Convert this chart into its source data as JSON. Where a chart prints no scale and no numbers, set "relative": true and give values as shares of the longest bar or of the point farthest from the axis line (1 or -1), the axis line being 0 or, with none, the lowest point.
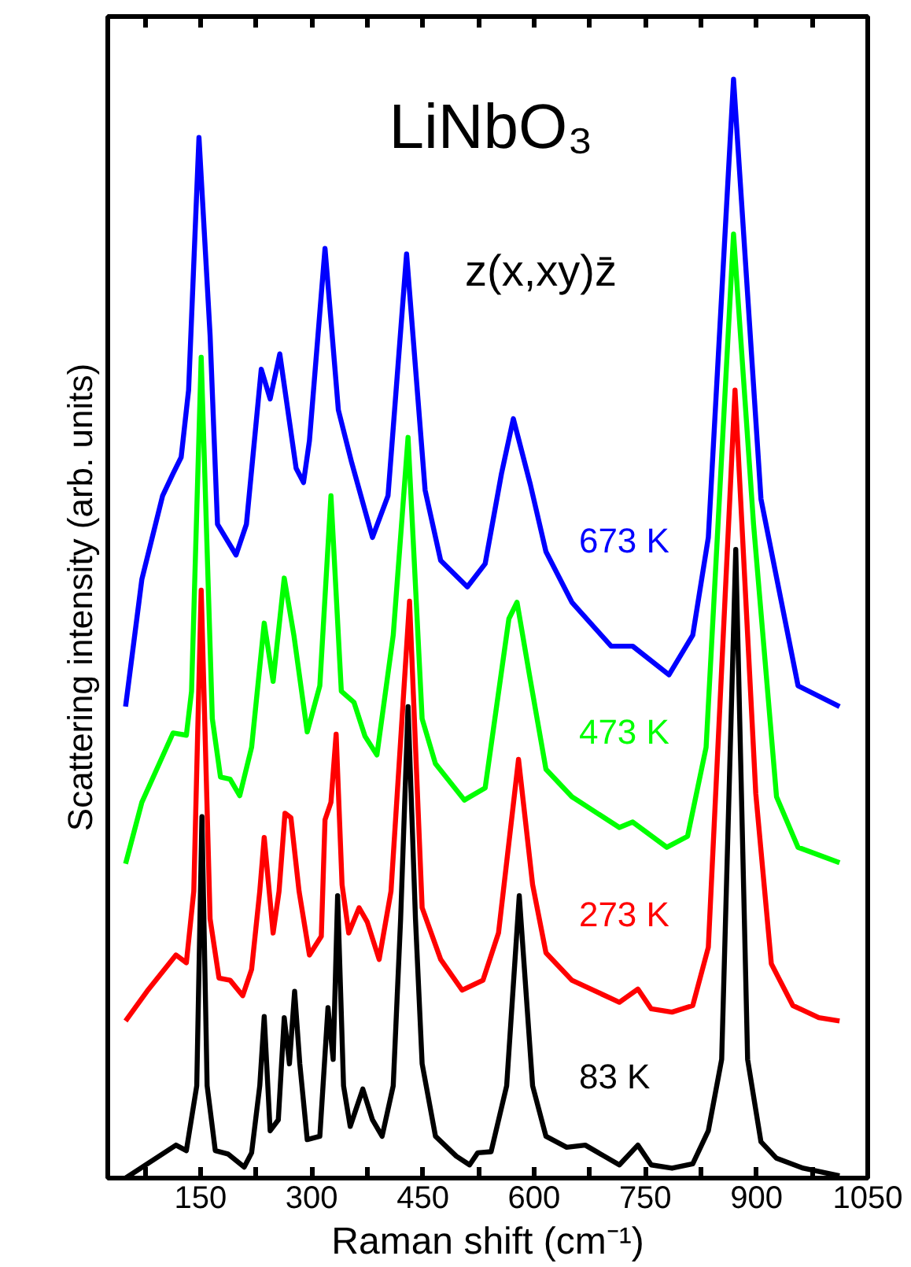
{
  "chart_data": {
    "type": "line",
    "title": "LiNbO₃",
    "subtitle": "z(x,xy)z̄",
    "xlabel": "Raman shift (cm⁻¹)",
    "ylabel": "Scattering intensity (arb. units)",
    "relative": true,
    "xlim": [
      25,
      1050
    ],
    "xticks": [
      {
        "value": 75,
        "label": null
      },
      150,
      {
        "value": 225,
        "label": null
      },
      300,
      {
        "value": 375,
        "label": null
      },
      450,
      {
        "value": 525,
        "label": null
      },
      600,
      {
        "value": 675,
        "label": null
      },
      750,
      {
        "value": 825,
        "label": null
      },
      900,
      {
        "value": 975,
        "label": null
      },
      1050
    ],
    "grid": false,
    "marker": "none",
    "line_style": "solid",
    "series": [
      {
        "name": "83 K",
        "color": "#000000",
        "x": [
          49,
          117,
          131,
          145,
          152,
          159,
          170,
          187,
          209,
          219,
          230,
          236,
          244,
          255,
          263,
          270,
          277,
          284,
          294,
          311,
          322,
          329,
          335,
          343,
          352,
          369,
          382,
          395,
          410,
          420,
          430,
          440,
          449,
          467,
          495,
          513,
          524,
          542,
          563,
          580,
          598,
          616,
          644,
          669,
          715,
          740,
          758,
          786,
          814,
          835,
          853,
          872,
          888,
          906,
          927,
          963,
          1012
        ],
        "values": [
          0.0,
          0.03,
          0.025,
          0.084,
          0.329,
          0.084,
          0.025,
          0.022,
          0.01,
          0.023,
          0.084,
          0.147,
          0.043,
          0.053,
          0.146,
          0.104,
          0.17,
          0.104,
          0.035,
          0.038,
          0.155,
          0.108,
          0.257,
          0.084,
          0.047,
          0.081,
          0.053,
          0.038,
          0.084,
          0.236,
          0.429,
          0.236,
          0.104,
          0.038,
          0.02,
          0.012,
          0.023,
          0.024,
          0.084,
          0.257,
          0.084,
          0.038,
          0.028,
          0.03,
          0.012,
          0.03,
          0.012,
          0.009,
          0.013,
          0.043,
          0.108,
          0.572,
          0.108,
          0.033,
          0.018,
          0.009,
          0.002
        ]
      },
      {
        "name": "273 K",
        "color": "#ff0000",
        "x": [
          49,
          78,
          117,
          131,
          141,
          151,
          163,
          175,
          190,
          207,
          219,
          230,
          236,
          248,
          256,
          264,
          272,
          283,
          297,
          313,
          318,
          326,
          333,
          341,
          350,
          364,
          375,
          391,
          407,
          432,
          449,
          474,
          503,
          531,
          552,
          579,
          598,
          616,
          651,
          715,
          740,
          758,
          786,
          814,
          835,
          871,
          899,
          920,
          949,
          984,
          1012
        ],
        "values": [
          0.143,
          0.17,
          0.203,
          0.196,
          0.261,
          0.535,
          0.236,
          0.182,
          0.18,
          0.166,
          0.19,
          0.261,
          0.31,
          0.223,
          0.261,
          0.332,
          0.328,
          0.261,
          0.203,
          0.22,
          0.326,
          0.342,
          0.404,
          0.267,
          0.223,
          0.246,
          0.233,
          0.199,
          0.261,
          0.525,
          0.246,
          0.199,
          0.171,
          0.18,
          0.223,
          0.381,
          0.267,
          0.205,
          0.18,
          0.16,
          0.172,
          0.154,
          0.151,
          0.157,
          0.21,
          0.717,
          0.35,
          0.195,
          0.157,
          0.146,
          0.143
        ]
      },
      {
        "name": "473 K",
        "color": "#00ff00",
        "x": [
          49,
          71,
          113,
          131,
          138,
          151,
          166,
          177,
          190,
          203,
          219,
          236,
          248,
          263,
          276,
          294,
          311,
          326,
          340,
          357,
          372,
          388,
          410,
          430,
          449,
          467,
          506,
          534,
          566,
          577,
          595,
          616,
          651,
          715,
          733,
          779,
          807,
          832,
          869,
          896,
          927,
          956,
          1012
        ],
        "values": [
          0.286,
          0.342,
          0.405,
          0.403,
          0.443,
          0.747,
          0.418,
          0.365,
          0.363,
          0.348,
          0.392,
          0.505,
          0.452,
          0.546,
          0.494,
          0.406,
          0.448,
          0.621,
          0.443,
          0.433,
          0.402,
          0.385,
          0.494,
          0.674,
          0.418,
          0.377,
          0.344,
          0.355,
          0.509,
          0.524,
          0.453,
          0.372,
          0.347,
          0.319,
          0.324,
          0.301,
          0.311,
          0.392,
          0.859,
          0.595,
          0.347,
          0.301,
          0.287
        ]
      },
      {
        "name": "673 K",
        "color": "#0000ff",
        "x": [
          49,
          71,
          99,
          113,
          124,
          134,
          148,
          163,
          173,
          198,
          212,
          232,
          244,
          257,
          279,
          289,
          297,
          318,
          336,
          354,
          382,
          403,
          428,
          453,
          474,
          510,
          534,
          556,
          572,
          595,
          616,
          651,
          704,
          733,
          782,
          814,
          835,
          869,
          906,
          956,
          1012
        ],
        "values": [
          0.429,
          0.545,
          0.621,
          0.641,
          0.656,
          0.717,
          0.947,
          0.767,
          0.595,
          0.567,
          0.595,
          0.736,
          0.709,
          0.75,
          0.646,
          0.633,
          0.671,
          0.846,
          0.699,
          0.651,
          0.583,
          0.621,
          0.841,
          0.626,
          0.562,
          0.538,
          0.559,
          0.641,
          0.691,
          0.631,
          0.57,
          0.524,
          0.484,
          0.484,
          0.458,
          0.494,
          0.583,
          1.0,
          0.618,
          0.448,
          0.429
        ]
      }
    ]
  }
}
